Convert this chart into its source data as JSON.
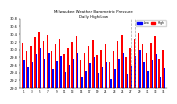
{
  "title": "Milwaukee Weather Barometric Pressure",
  "subtitle": "Daily High/Low",
  "bar_width": 0.35,
  "high_color": "#ff0000",
  "low_color": "#0000ff",
  "background_color": "#ffffff",
  "ylim": [
    29.0,
    30.8
  ],
  "yticks": [
    29.0,
    29.2,
    29.4,
    29.6,
    29.8,
    30.0,
    30.2,
    30.4,
    30.6,
    30.8
  ],
  "legend_high": "High",
  "legend_low": "Low",
  "highs": [
    30.18,
    29.97,
    30.1,
    30.32,
    30.45,
    30.22,
    30.38,
    29.95,
    30.15,
    30.28,
    29.88,
    30.05,
    30.2,
    30.35,
    29.72,
    29.9,
    30.1,
    30.25,
    29.85,
    30.0,
    30.15,
    29.68,
    29.95,
    30.22,
    30.38,
    29.8,
    30.05,
    30.28,
    30.42,
    30.15,
    29.92,
    30.18,
    30.35,
    29.75,
    30.0
  ],
  "lows": [
    29.72,
    29.55,
    29.68,
    29.88,
    30.05,
    29.75,
    29.92,
    29.48,
    29.7,
    29.82,
    29.42,
    29.6,
    29.75,
    29.92,
    29.28,
    29.45,
    29.65,
    29.8,
    29.38,
    29.55,
    29.68,
    29.22,
    29.48,
    29.75,
    29.92,
    29.35,
    29.58,
    29.82,
    29.98,
    29.68,
    29.45,
    29.72,
    29.88,
    29.28,
    29.52
  ],
  "dashed_lines": [
    26,
    27
  ],
  "labels": [
    "1",
    "2",
    "3",
    "4",
    "5",
    "6",
    "7",
    "8",
    "9",
    "10",
    "11",
    "12",
    "13",
    "14",
    "15",
    "16",
    "17",
    "18",
    "19",
    "20",
    "21",
    "22",
    "23",
    "24",
    "25",
    "26",
    "27",
    "28",
    "29",
    "30",
    "31",
    "32",
    "33",
    "34",
    "35"
  ]
}
